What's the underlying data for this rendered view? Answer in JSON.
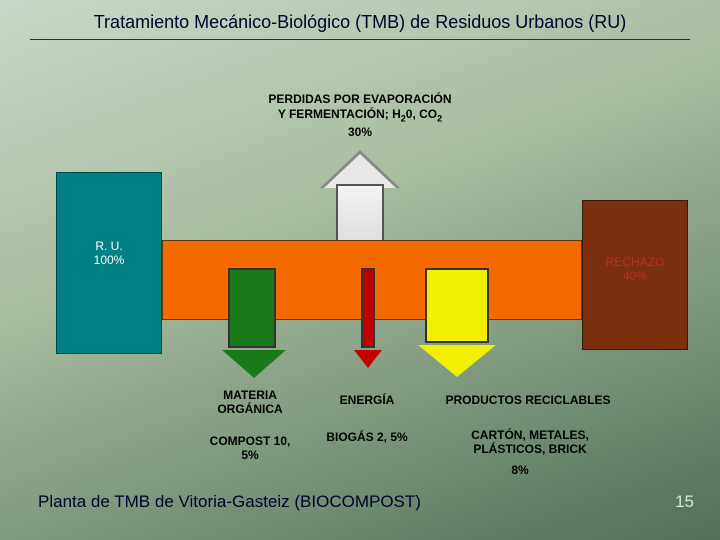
{
  "title": "Tratamiento Mecánico-Biológico (TMB) de Residuos Urbanos (RU)",
  "footer": "Planta de TMB de Vitoria-Gasteiz (BIOCOMPOST)",
  "page_number": "15",
  "top": {
    "line1": "PERDIDAS POR EVAPORACIÓN",
    "line2_a": "Y FERMENTACIÓN; H",
    "line2_sub1": "2",
    "line2_b": "0, CO",
    "line2_sub2": "2",
    "line3": "30%"
  },
  "input": {
    "line1": "R. U.",
    "line2": "100%"
  },
  "rechazo": {
    "line1": "RECHAZO",
    "line2": "40%"
  },
  "outputs": {
    "materia": "MATERIA ORGÁNICA",
    "compost": "COMPOST 10, 5%",
    "energia": "ENERGÍA",
    "biogas": "BIOGÁS 2, 5%",
    "reciclables": "PRODUCTOS RECICLABLES",
    "carton": "CARTÓN, METALES, PLÁSTICOS, BRICK",
    "recicl_pct": "8%"
  },
  "colors": {
    "bg_from": "#c8d8c8",
    "bg_to": "#507058",
    "orange": "#f56a00",
    "teal": "#008080",
    "brown": "#7a2f0f",
    "green": "#1a7a1a",
    "red": "#c00000",
    "yellow": "#f0f000",
    "grey_arrow": "#e8e8e8"
  },
  "diagram": {
    "type": "flowchart",
    "percentages": {
      "input": 100,
      "evaporacion": 30,
      "compost": 10.5,
      "biogas": 2.5,
      "reciclables": 8,
      "rechazo": 40
    }
  }
}
